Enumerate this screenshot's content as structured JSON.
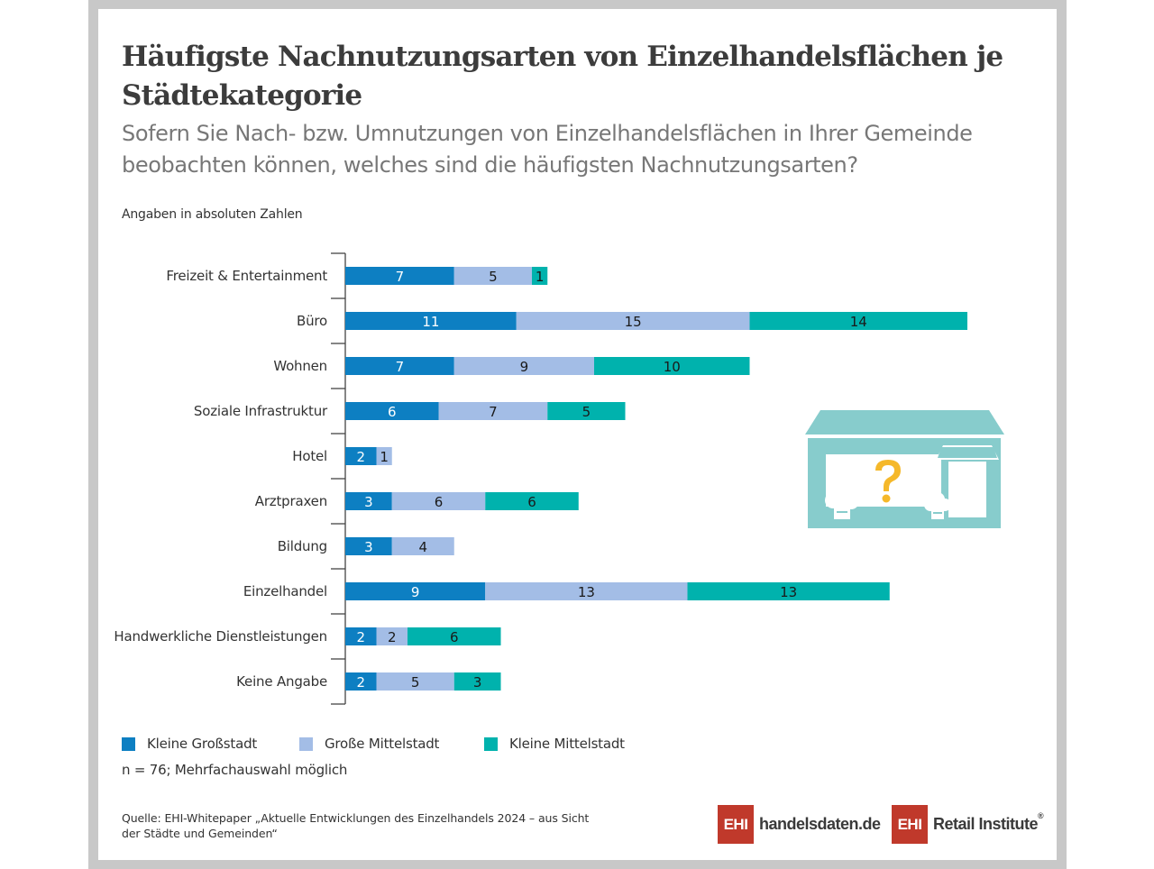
{
  "title": "Häufigste Nachnutzungsarten von Einzelhandelsflächen je Städtekategorie",
  "subtitle": "Sofern Sie Nach- bzw. Umnutzungen von Einzelhandelsflächen in Ihrer Gemeinde beobachten können, welches sind die häufigsten Nachnutzungsarten?",
  "units_note": "Angaben in absoluten Zahlen",
  "footnote": "n = 76; Mehrfachauswahl möglich",
  "source": "Quelle: EHI-Whitepaper „Aktuelle Entwicklungen des Einzelhandels 2024 – aus Sicht der Städte und Gemeinden“",
  "logos": [
    {
      "box": "EHI",
      "text": "handelsdaten.de"
    },
    {
      "box": "EHI",
      "text": "Retail Institute",
      "mark": "®"
    }
  ],
  "illustration": {
    "icon": "shop-question-icon",
    "symbol": "?"
  },
  "colors": {
    "kleine_grossstadt": "#0d7fc2",
    "grosse_mittelstadt": "#a3bde6",
    "kleine_mittelstadt": "#00b2ad",
    "axis": "#444444",
    "illustration": "#87cccc",
    "question": "#f5b82a",
    "brand": "#c0392b"
  },
  "chart_data": {
    "type": "bar",
    "orientation": "horizontal",
    "stacked": true,
    "categories": [
      "Freizeit & Entertainment",
      "Büro",
      "Wohnen",
      "Soziale Infrastruktur",
      "Hotel",
      "Arztpraxen",
      "Bildung",
      "Einzelhandel",
      "Handwerkliche Dienstleistungen",
      "Keine Angabe"
    ],
    "series": [
      {
        "name": "Kleine Großstadt",
        "color": "#0d7fc2",
        "values": [
          7,
          11,
          7,
          6,
          2,
          3,
          3,
          9,
          2,
          2
        ]
      },
      {
        "name": "Große Mittelstadt",
        "color": "#a3bde6",
        "values": [
          5,
          15,
          9,
          7,
          1,
          6,
          4,
          13,
          2,
          5
        ]
      },
      {
        "name": "Kleine Mittelstadt",
        "color": "#00b2ad",
        "values": [
          1,
          14,
          10,
          5,
          0,
          6,
          0,
          13,
          6,
          3
        ]
      }
    ],
    "legend_position": "bottom-left",
    "grid": false
  }
}
